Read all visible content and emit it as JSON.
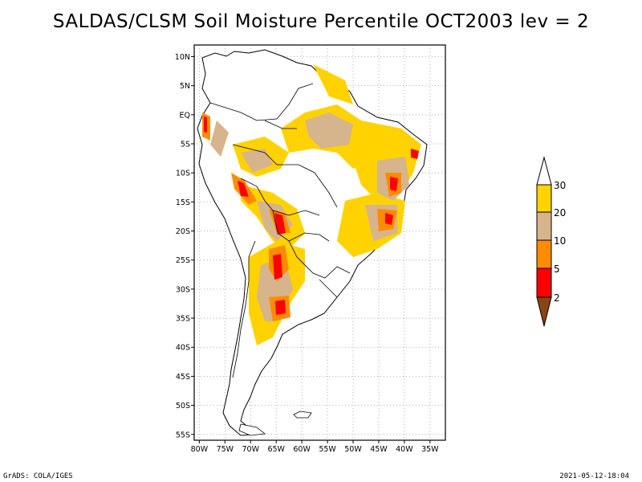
{
  "title": "SALDAS/CLSM Soil Moisture Percentile OCT2003 lev = 2",
  "map": {
    "lat_labels": [
      "10N",
      "5N",
      "EQ",
      "5S",
      "10S",
      "15S",
      "20S",
      "25S",
      "30S",
      "35S",
      "40S",
      "45S",
      "50S",
      "55S"
    ],
    "lat_values": [
      10,
      5,
      0,
      -5,
      -10,
      -15,
      -20,
      -25,
      -30,
      -35,
      -40,
      -45,
      -50,
      -55
    ],
    "lon_labels": [
      "80W",
      "75W",
      "70W",
      "65W",
      "60W",
      "55W",
      "50W",
      "45W",
      "40W",
      "35W"
    ],
    "lon_values": [
      -80,
      -75,
      -70,
      -65,
      -60,
      -55,
      -50,
      -45,
      -40,
      -35
    ],
    "extent": {
      "lon": [
        -81,
        -32
      ],
      "lat": [
        -56,
        12
      ]
    },
    "grid": true
  },
  "legend": {
    "labels": [
      "30",
      "20",
      "10",
      "5",
      "2"
    ],
    "colors": {
      "above_30": "#ffffff",
      "20_30": "#ffd200",
      "10_20": "#d6b48c",
      "5_10": "#ff8c00",
      "2_5": "#ff0000",
      "below_2": "#8b4513"
    }
  },
  "footer": {
    "left": "GrADS: COLA/IGES",
    "right": "2021-05-12-18:04"
  }
}
